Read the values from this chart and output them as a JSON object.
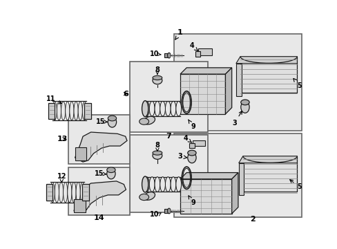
{
  "fig_width": 4.89,
  "fig_height": 3.6,
  "dpi": 100,
  "bg": "#ffffff",
  "box_fill": "#e8e8e8",
  "box_edge": "#666666",
  "lc": "#1a1a1a",
  "boxes": {
    "b1": [
      0.503,
      0.528,
      0.99,
      0.972
    ],
    "b2": [
      0.503,
      0.028,
      0.99,
      0.5
    ],
    "b6": [
      0.322,
      0.528,
      0.592,
      0.858
    ],
    "b7": [
      0.322,
      0.178,
      0.592,
      0.5
    ],
    "b13": [
      0.098,
      0.444,
      0.322,
      0.694
    ],
    "b14": [
      0.098,
      0.178,
      0.322,
      0.444
    ]
  },
  "label_fs": 8,
  "small_fs": 7
}
